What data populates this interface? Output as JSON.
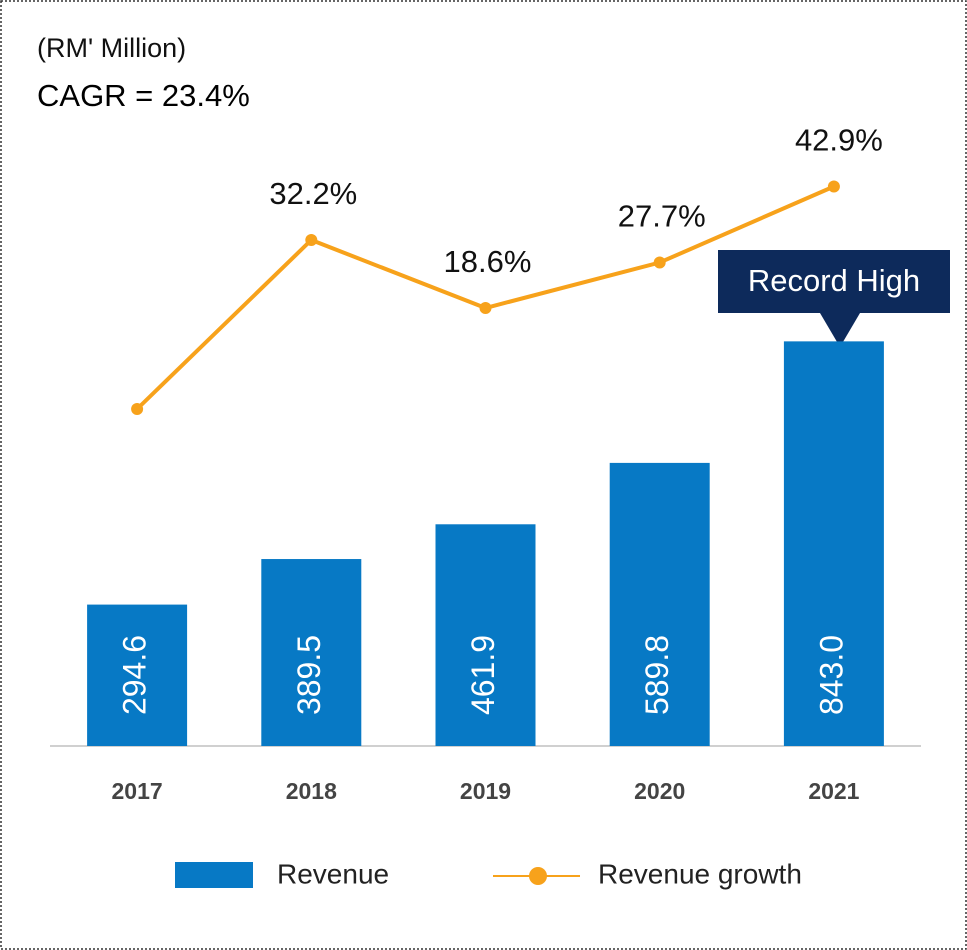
{
  "chart_data": {
    "type": "bar_line",
    "title": "(RM' Million)",
    "subtitle": "CAGR = 23.4%",
    "annotation": "Record High",
    "categories": [
      "2017",
      "2018",
      "2019",
      "2020",
      "2021"
    ],
    "ylim": [
      0,
      1250
    ],
    "y2lim": [
      -69,
      51
    ],
    "series": [
      {
        "name": "Revenue",
        "type": "bar",
        "color": "#0779c5",
        "values": [
          294.6,
          389.5,
          461.9,
          589.8,
          843.0
        ],
        "value_labels": [
          "294.6",
          "389.5",
          "461.9",
          "589.8",
          "843.0"
        ]
      },
      {
        "name": "Revenue growth",
        "type": "line",
        "axis": "y2",
        "color": "#f7a21b",
        "values": [
          -1.6,
          32.2,
          18.6,
          27.7,
          42.9
        ],
        "value_labels": [
          null,
          "32.2%",
          "18.6%",
          "27.7%",
          "42.9%"
        ]
      }
    ]
  }
}
